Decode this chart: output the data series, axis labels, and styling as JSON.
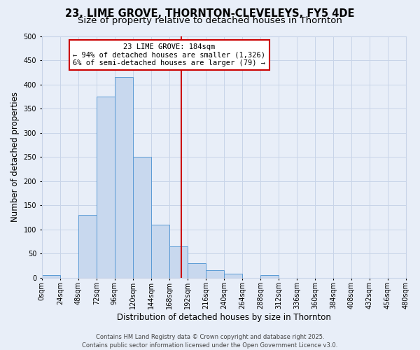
{
  "title": "23, LIME GROVE, THORNTON-CLEVELEYS, FY5 4DE",
  "subtitle": "Size of property relative to detached houses in Thornton",
  "xlabel": "Distribution of detached houses by size in Thornton",
  "ylabel": "Number of detached properties",
  "bin_edges": [
    0,
    24,
    48,
    72,
    96,
    120,
    144,
    168,
    192,
    216,
    240,
    264,
    288,
    312,
    336,
    360,
    384,
    408,
    432,
    456,
    480
  ],
  "bar_heights": [
    5,
    0,
    130,
    375,
    415,
    250,
    110,
    65,
    30,
    15,
    8,
    0,
    5,
    0,
    0,
    0,
    0,
    0,
    0,
    0
  ],
  "bar_color": "#c8d8ee",
  "bar_edge_color": "#5b9bd5",
  "vline_x": 184,
  "vline_color": "#cc0000",
  "annotation_line1": "23 LIME GROVE: 184sqm",
  "annotation_line2": "← 94% of detached houses are smaller (1,326)",
  "annotation_line3": "6% of semi-detached houses are larger (79) →",
  "annotation_box_color": "#ffffff",
  "annotation_box_edge": "#cc0000",
  "ylim": [
    0,
    500
  ],
  "xlim": [
    0,
    480
  ],
  "tick_labels": [
    "0sqm",
    "24sqm",
    "48sqm",
    "72sqm",
    "96sqm",
    "120sqm",
    "144sqm",
    "168sqm",
    "192sqm",
    "216sqm",
    "240sqm",
    "264sqm",
    "288sqm",
    "312sqm",
    "336sqm",
    "360sqm",
    "384sqm",
    "408sqm",
    "432sqm",
    "456sqm",
    "480sqm"
  ],
  "tick_positions": [
    0,
    24,
    48,
    72,
    96,
    120,
    144,
    168,
    192,
    216,
    240,
    264,
    288,
    312,
    336,
    360,
    384,
    408,
    432,
    456,
    480
  ],
  "ytick_positions": [
    0,
    50,
    100,
    150,
    200,
    250,
    300,
    350,
    400,
    450,
    500
  ],
  "grid_color": "#c8d4e8",
  "bg_color": "#e8eef8",
  "footer_text": "Contains HM Land Registry data © Crown copyright and database right 2025.\nContains public sector information licensed under the Open Government Licence v3.0.",
  "title_fontsize": 10.5,
  "subtitle_fontsize": 9.5,
  "axis_label_fontsize": 8.5,
  "tick_fontsize": 7,
  "annotation_fontsize": 7.5,
  "footer_fontsize": 6
}
